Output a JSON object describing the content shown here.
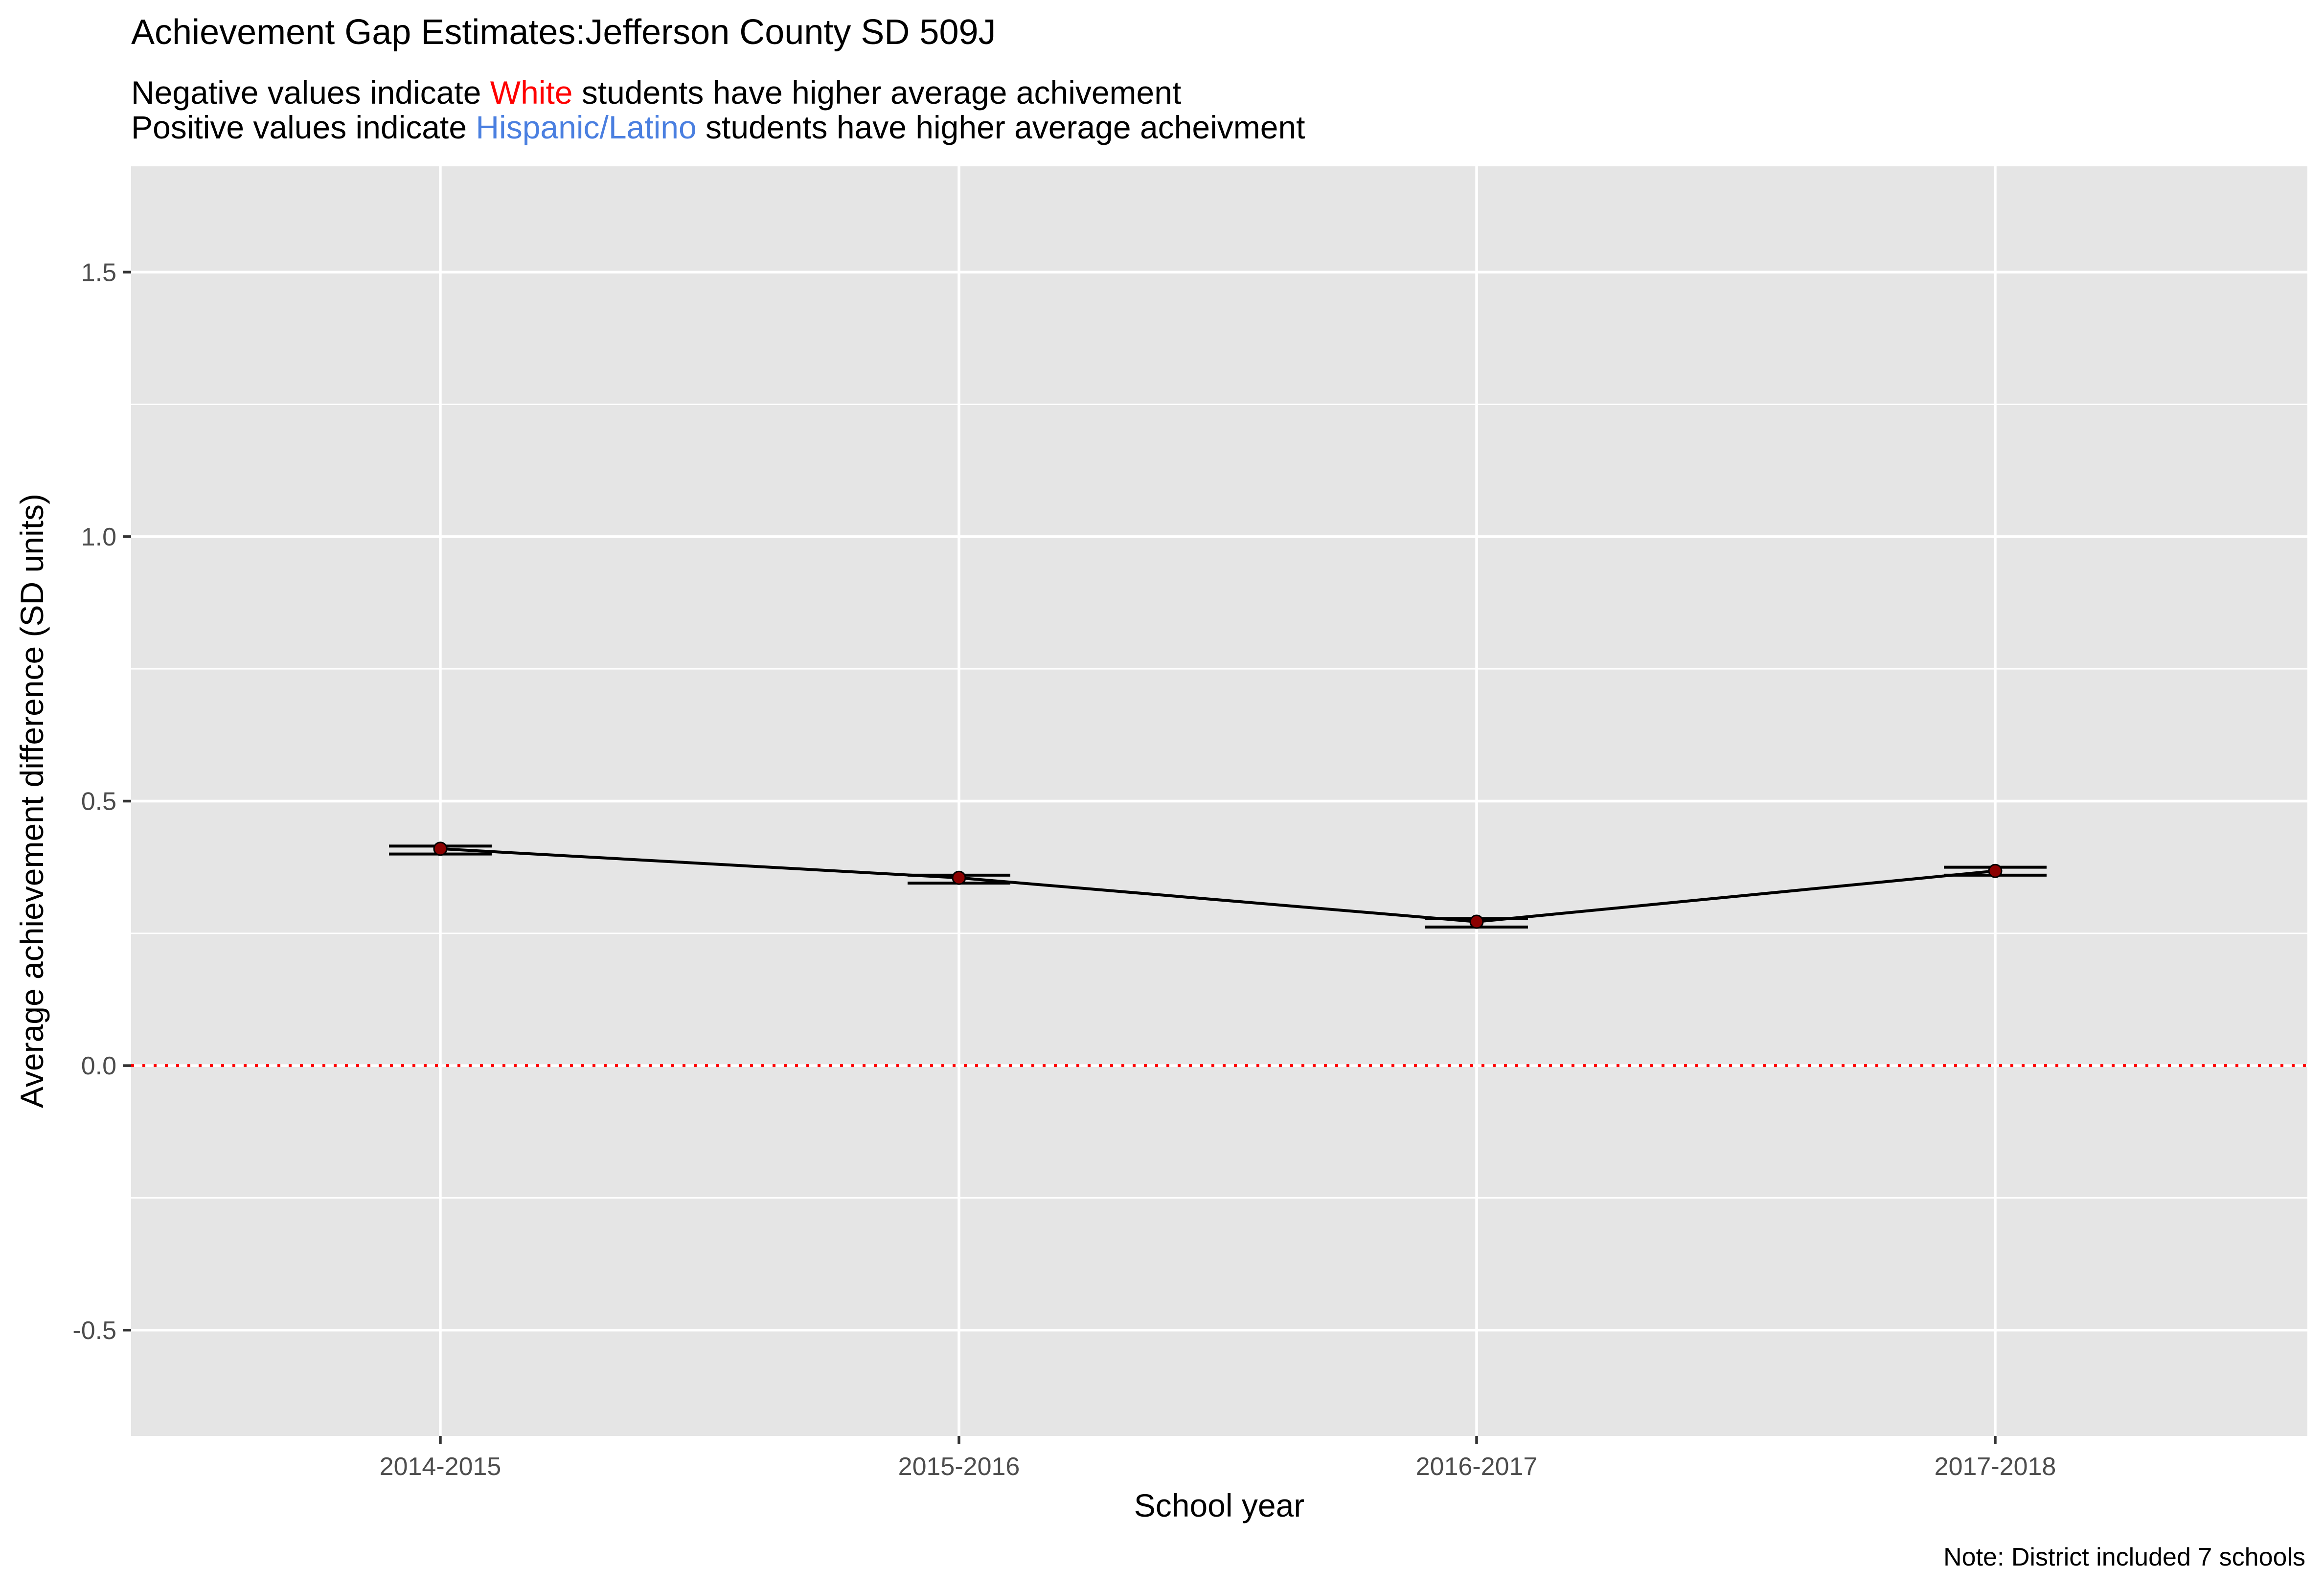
{
  "chart_data": {
    "type": "line",
    "title": "Achievement Gap Estimates:Jefferson County SD 509J",
    "subtitle_line1": {
      "prefix": "Negative values indicate ",
      "highlight": "White",
      "suffix": " students have higher average achivement"
    },
    "subtitle_line2": {
      "prefix": "Positive values indicate ",
      "highlight": "Hispanic/Latino",
      "suffix": " students have higher average acheivment"
    },
    "xlabel": "School year",
    "ylabel": "Average achievement difference (SD units)",
    "caption": "Note: District included 7 schools",
    "categories": [
      "2014-2015",
      "2015-2016",
      "2016-2017",
      "2017-2018"
    ],
    "series": [
      {
        "values": [
          0.41,
          0.355,
          0.272,
          0.368
        ],
        "error_lower": [
          0.4,
          0.345,
          0.262,
          0.36
        ],
        "error_upper": [
          0.415,
          0.36,
          0.278,
          0.375
        ]
      }
    ],
    "ylim": [
      -0.7,
      1.7
    ],
    "yticks": [
      -0.5,
      0.0,
      0.5,
      1.0,
      1.5
    ],
    "ytick_labels": [
      "-0.5",
      "0.0",
      "0.5",
      "1.0",
      "1.5"
    ],
    "reference_line": {
      "y": 0,
      "style": "dotted"
    },
    "grid": true,
    "legend": "none",
    "colors": {
      "panel_background": "#e5e5e5",
      "grid": "#ffffff",
      "line": "#000000",
      "point": "#8b0000",
      "reference_line": "#ff0000",
      "white_highlight": "#ff0000",
      "hispanic_highlight": "#4a7fe0"
    }
  }
}
